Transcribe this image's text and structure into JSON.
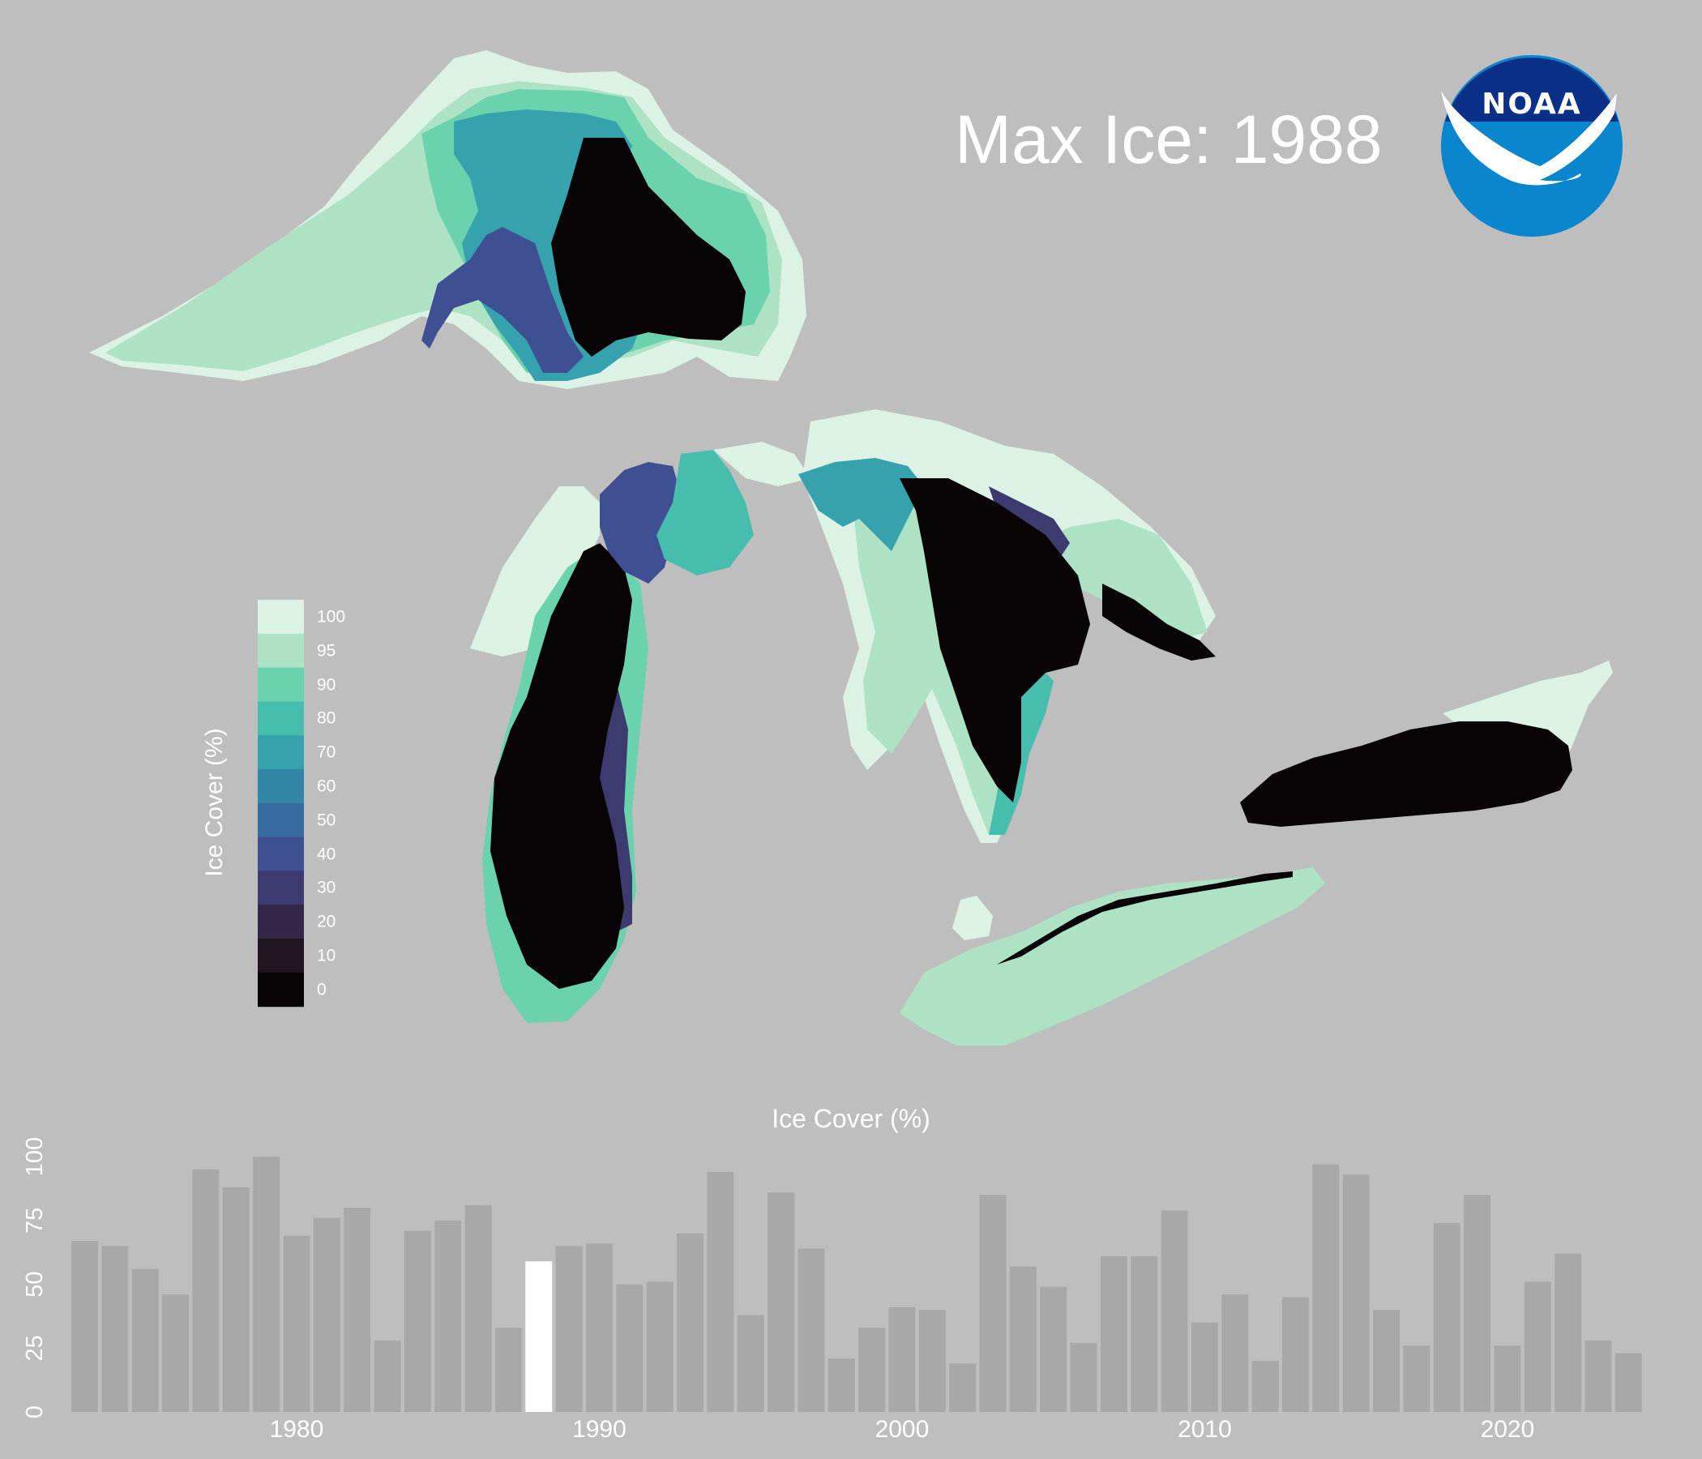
{
  "title_prefix": "Max Ice: ",
  "year": "1988",
  "logo": {
    "text": "NOAA",
    "outer_color": "#0a86cf",
    "inner_color": "#0a2f87"
  },
  "legend": {
    "title": "Ice Cover (%)",
    "bins": [
      {
        "label": "100",
        "color": "#dcf2e4"
      },
      {
        "label": "95",
        "color": "#ade3c4"
      },
      {
        "label": "90",
        "color": "#6bd2ae"
      },
      {
        "label": "80",
        "color": "#47bdad"
      },
      {
        "label": "70",
        "color": "#36a2ad"
      },
      {
        "label": "60",
        "color": "#3387a6"
      },
      {
        "label": "50",
        "color": "#376ba2"
      },
      {
        "label": "40",
        "color": "#3e4f92"
      },
      {
        "label": "30",
        "color": "#3d3a70"
      },
      {
        "label": "20",
        "color": "#322749"
      },
      {
        "label": "10",
        "color": "#211521"
      },
      {
        "label": "0",
        "color": "#080405"
      }
    ]
  },
  "lake_colors": {
    "bar": "#a8a8a8",
    "highlight": "#ffffff",
    "open_water": "#080405"
  },
  "chart_data": {
    "type": "bar",
    "title": "Ice Cover (%)",
    "xlabel": "",
    "ylabel": "",
    "x": [
      1973,
      1974,
      1975,
      1976,
      1977,
      1978,
      1979,
      1980,
      1981,
      1982,
      1983,
      1984,
      1985,
      1986,
      1987,
      1988,
      1989,
      1990,
      1991,
      1992,
      1993,
      1994,
      1995,
      1996,
      1997,
      1998,
      1999,
      2000,
      2001,
      2002,
      2003,
      2004,
      2005,
      2006,
      2007,
      2008,
      2009,
      2010,
      2011,
      2012,
      2013,
      2014,
      2015,
      2016,
      2017,
      2018,
      2019,
      2020,
      2021,
      2022,
      2023,
      2024
    ],
    "values": [
      67,
      65,
      56,
      46,
      95,
      88,
      100,
      69,
      76,
      80,
      28,
      71,
      75,
      81,
      33,
      59,
      65,
      66,
      50,
      51,
      70,
      94,
      38,
      86,
      64,
      21,
      33,
      41,
      40,
      19,
      85,
      57,
      49,
      27,
      61,
      61,
      79,
      35,
      46,
      20,
      45,
      97,
      93,
      40,
      26,
      74,
      85,
      26,
      51,
      62,
      28,
      23
    ],
    "highlight_x": 1988,
    "ylim": [
      0,
      100
    ],
    "yticks": [
      0,
      25,
      50,
      75,
      100
    ],
    "xticks": [
      1980,
      1990,
      2000,
      2010,
      2020
    ],
    "grid": false,
    "legend": "none"
  }
}
